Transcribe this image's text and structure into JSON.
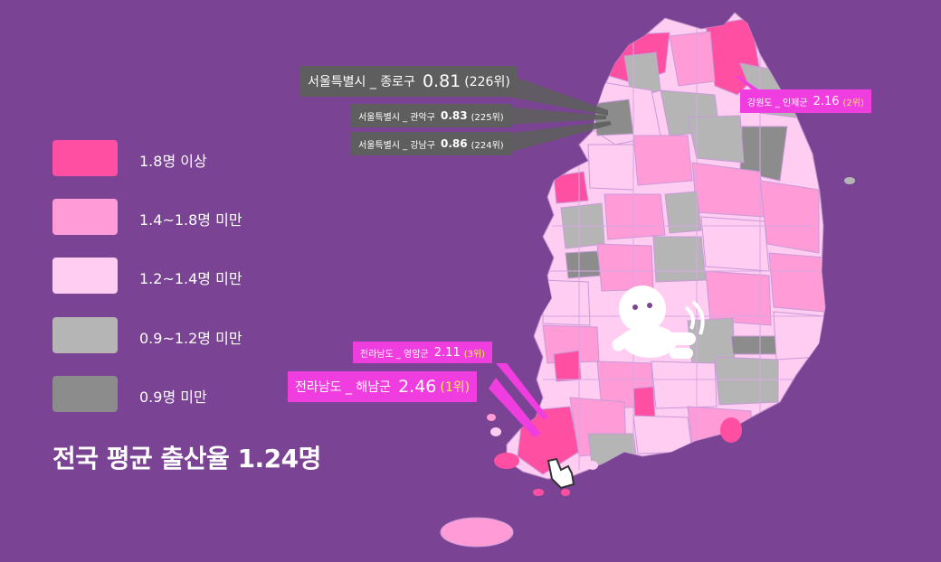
{
  "legend": [
    {
      "label": "1.8명 이상",
      "color": "#ff4fa3"
    },
    {
      "label": "1.4~1.8명 미만",
      "color": "#ff9bd6"
    },
    {
      "label": "1.2~1.4명 미만",
      "color": "#ffccf2"
    },
    {
      "label": "0.9~1.2명 미만",
      "color": "#b5b5b5"
    },
    {
      "label": "0.9명 미만",
      "color": "#8c8c8c"
    }
  ],
  "average_label": "전국 평균 출산율 1.24명",
  "callouts": [
    {
      "region": "서울특별시 _ 종로구",
      "value": "0.81",
      "rank": "(226위)"
    },
    {
      "region": "서울특별시 _ 관악구",
      "value": "0.83",
      "rank": "(225위)"
    },
    {
      "region": "서울특별시 _ 강남구",
      "value": "0.86",
      "rank": "(224위)"
    },
    {
      "region": "강원도 _ 인제군",
      "value": "2.16",
      "rank": "(2위)"
    },
    {
      "region": "전라남도 _ 영암군",
      "value": "2.11",
      "rank": "(3위)"
    },
    {
      "region": "전라남도 _ 해남군",
      "value": "2.46",
      "rank": "(1위)"
    }
  ],
  "colors": {
    "background": "#7a4394",
    "callout_gray": "#5e5e5e",
    "callout_pink": "#f03ddf",
    "rank_highlight": "#ffe85a"
  }
}
